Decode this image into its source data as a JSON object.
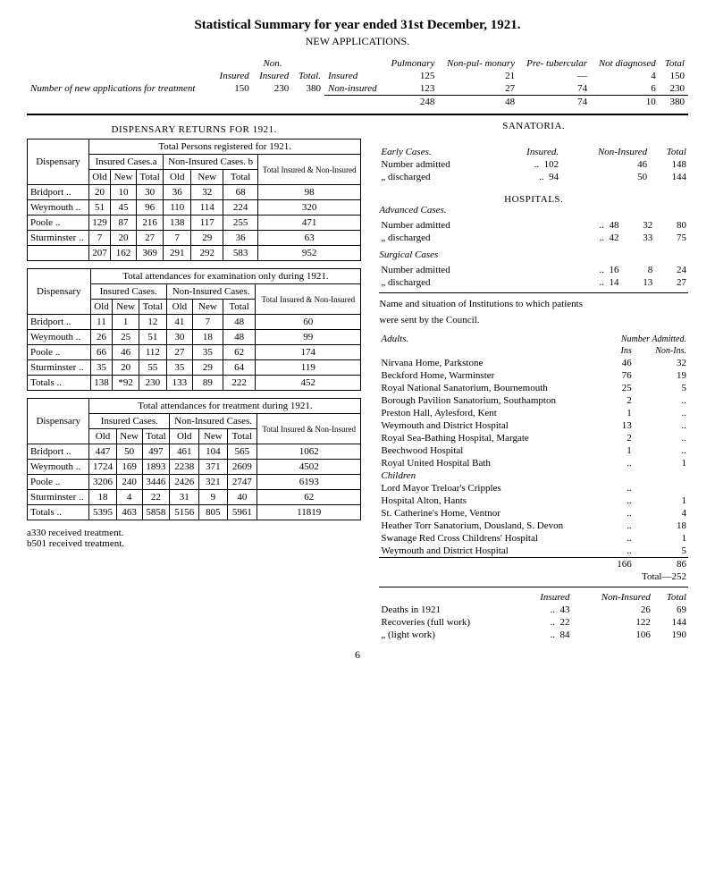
{
  "title": "Statistical Summary for year ended 31st December, 1921.",
  "subtitle": "NEW APPLICATIONS.",
  "top_left": {
    "caption": "Number of new applications for treatment",
    "h_non": "Non.",
    "h_ins": "Insured",
    "h_nonins": "Insured",
    "h_total": "Total.",
    "v_ins": "150",
    "v_nonins": "230",
    "v_total": "380"
  },
  "top_right": {
    "cols": [
      "Pulmonary",
      "Non-pul-\nmonary",
      "Pre-\ntubercular",
      "Not\ndiagnosed",
      "Total"
    ],
    "rows": [
      {
        "label": "Insured",
        "vals": [
          "125",
          "21",
          "—",
          "4",
          "150"
        ]
      },
      {
        "label": "Non-insured",
        "vals": [
          "123",
          "27",
          "74",
          "6",
          "230"
        ]
      }
    ],
    "totals": [
      "248",
      "48",
      "74",
      "10",
      "380"
    ]
  },
  "dispensary_header": "DISPENSARY RETURNS FOR 1921.",
  "registered_caption": "Total Persons registered for 1921.",
  "group_ins": "Insured Cases.a",
  "group_nonins": "Non-Insured Cases. b",
  "sub_cols": [
    "Old",
    "New",
    "Total",
    "Old",
    "New",
    "Total"
  ],
  "dispensary_lbl": "Dispensary",
  "total_col": "Total Insured & Non-Insured",
  "reg_rows": [
    {
      "d": "Bridport",
      "v": [
        "20",
        "10",
        "30",
        "36",
        "32",
        "68",
        "98"
      ]
    },
    {
      "d": "Weymouth",
      "v": [
        "51",
        "45",
        "96",
        "110",
        "114",
        "224",
        "320"
      ]
    },
    {
      "d": "Poole",
      "v": [
        "129",
        "87",
        "216",
        "138",
        "117",
        "255",
        "471"
      ]
    },
    {
      "d": "Sturminster",
      "v": [
        "7",
        "20",
        "27",
        "7",
        "29",
        "36",
        "63"
      ]
    }
  ],
  "reg_totals": [
    "207",
    "162",
    "369",
    "291",
    "292",
    "583",
    "952"
  ],
  "exam_caption": "Total attendances for examination only during 1921.",
  "group_ins2": "Insured Cases.",
  "group_nonins2": "Non-Insured Cases.",
  "exam_rows": [
    {
      "d": "Bridport",
      "v": [
        "11",
        "1",
        "12",
        "41",
        "7",
        "48",
        "60"
      ]
    },
    {
      "d": "Weymouth",
      "v": [
        "26",
        "25",
        "51",
        "30",
        "18",
        "48",
        "99"
      ]
    },
    {
      "d": "Poole",
      "v": [
        "66",
        "46",
        "112",
        "27",
        "35",
        "62",
        "174"
      ]
    },
    {
      "d": "Sturminster",
      "v": [
        "35",
        "20",
        "55",
        "35",
        "29",
        "64",
        "119"
      ]
    }
  ],
  "exam_totals_lbl": "Totals",
  "exam_totals": [
    "138",
    "*92",
    "230",
    "133",
    "89",
    "222",
    "452"
  ],
  "treat_caption": "Total attendances for treatment during 1921.",
  "treat_rows": [
    {
      "d": "Bridport",
      "v": [
        "447",
        "50",
        "497",
        "461",
        "104",
        "565",
        "1062"
      ]
    },
    {
      "d": "Weymouth",
      "v": [
        "1724",
        "169",
        "1893",
        "2238",
        "371",
        "2609",
        "4502"
      ]
    },
    {
      "d": "Poole",
      "v": [
        "3206",
        "240",
        "3446",
        "2426",
        "321",
        "2747",
        "6193"
      ]
    },
    {
      "d": "Sturminster",
      "v": [
        "18",
        "4",
        "22",
        "31",
        "9",
        "40",
        "62"
      ]
    }
  ],
  "treat_totals": [
    "5395",
    "463",
    "5858",
    "5156",
    "805",
    "5961",
    "11819"
  ],
  "footnote_a": "a330 received treatment.",
  "footnote_b": "b501 received treatment.",
  "sanatoria": {
    "head": "SANATORIA.",
    "early_lbl": "Early Cases.",
    "cols": [
      "Insured.",
      "Non-Insured",
      "Total"
    ],
    "rows": [
      {
        "l": "Number admitted",
        "v": [
          "102",
          "46",
          "148"
        ]
      },
      {
        "l": "„ discharged",
        "v": [
          "94",
          "50",
          "144"
        ]
      }
    ]
  },
  "hospitals": {
    "head": "HOSPITALS.",
    "adv_lbl": "Advanced Cases.",
    "rows": [
      {
        "l": "Number admitted",
        "v": [
          "48",
          "32",
          "80"
        ]
      },
      {
        "l": "„ discharged",
        "v": [
          "42",
          "33",
          "75"
        ]
      }
    ],
    "surg_lbl": "Surgical Cases",
    "srows": [
      {
        "l": "Number admitted",
        "v": [
          "16",
          "8",
          "24"
        ]
      },
      {
        "l": "„    discharged",
        "v": [
          "14",
          "13",
          "27"
        ]
      }
    ]
  },
  "sent_note": "Name and situation of Institutions to which patients",
  "sent_note2": "were sent by the Council.",
  "adults": {
    "head": "Adults.",
    "col_head_num": "Number Admitted.",
    "col_head_ins": "Ins",
    "col_head_nonins": "Non-Ins.",
    "rows": [
      {
        "l": "Nirvana Home, Parkstone",
        "i": "46",
        "n": "32"
      },
      {
        "l": "Beckford Home, Warminster",
        "i": "76",
        "n": "19"
      },
      {
        "l": "Royal National Sanatorium, Bournemouth",
        "i": "25",
        "n": "5"
      },
      {
        "l": "Borough Pavilion Sanatorium, Southampton",
        "i": "2",
        "n": ".."
      },
      {
        "l": "Preston Hall, Aylesford, Kent",
        "i": "1",
        "n": ".."
      },
      {
        "l": "Weymouth and District Hospital",
        "i": "13",
        "n": ".."
      },
      {
        "l": "Royal Sea-Bathing Hospital, Margate",
        "i": "2",
        "n": ".."
      },
      {
        "l": "Beechwood Hospital",
        "i": "1",
        "n": ".."
      },
      {
        "l": "Royal United Hospital Bath",
        "i": "..",
        "n": "1"
      }
    ],
    "children_head": "Children",
    "crows": [
      {
        "l": "Lord Mayor Treloar's Cripples",
        "i": "..",
        "n": ""
      },
      {
        "l": "  Hospital Alton, Hants",
        "i": "..",
        "n": "1"
      },
      {
        "l": "St. Catherine's Home, Ventnor",
        "i": "..",
        "n": "4"
      },
      {
        "l": "Heather Torr Sanatorium, Dousland, S. Devon",
        "i": "..",
        "n": "18"
      },
      {
        "l": "Swanage Red Cross Childrens' Hospital",
        "i": "..",
        "n": "1"
      },
      {
        "l": "Weymouth and District Hospital",
        "i": "..",
        "n": "5"
      }
    ],
    "totals": {
      "i": "166",
      "n": "86"
    },
    "grand": "Total—252"
  },
  "deaths": {
    "cols": [
      "Insured",
      "Non-Insured",
      "Total"
    ],
    "rows": [
      {
        "l": "Deaths in 1921",
        "v": [
          "43",
          "26",
          "69"
        ]
      },
      {
        "l": "Recoveries (full work)",
        "v": [
          "22",
          "122",
          "144"
        ]
      },
      {
        "l": "„     (light work)",
        "v": [
          "84",
          "106",
          "190"
        ]
      }
    ]
  },
  "page": "6"
}
